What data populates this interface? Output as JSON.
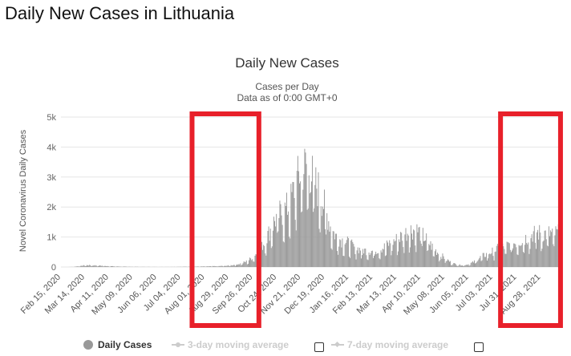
{
  "page_title": "Daily New Cases in Lithuania",
  "colors": {
    "bars": "#999999",
    "grid": "#e6e6e6",
    "highlight_box": "#e8202a",
    "text": "#333333",
    "legend_dim": "#cccccc"
  },
  "legend": {
    "main": "Daily Cases",
    "ma3": "3-day moving average",
    "ma7": "7-day moving average"
  },
  "chart_data": {
    "type": "bar",
    "title": "Daily New Cases",
    "subtitle": "Cases per Day",
    "subtitle2": "Data as of 0:00 GMT+0",
    "ylabel": "Novel Coronavirus Daily Cases",
    "xlabel": "",
    "ylim": [
      0,
      5000
    ],
    "y_ticks": [
      0,
      1000,
      2000,
      3000,
      4000,
      5000
    ],
    "y_tick_labels": [
      "0",
      "1k",
      "2k",
      "3k",
      "4k",
      "5k"
    ],
    "x_start": "2020-02-15",
    "x_end": "2021-09-21",
    "x_tick_labels": [
      "Feb 15, 2020",
      "Mar 14, 2020",
      "Apr 11, 2020",
      "May 09, 2020",
      "Jun 06, 2020",
      "Jul 04, 2020",
      "Aug 01, 2020",
      "Aug 29, 2020",
      "Sep 26, 2020",
      "Oct 24, 2020",
      "Nov 21, 2020",
      "Dec 19, 2020",
      "Jan 16, 2021",
      "Feb 13, 2021",
      "Mar 13, 2021",
      "Apr 10, 2021",
      "May 08, 2021",
      "Jun 05, 2021",
      "Jul 03, 2021",
      "Jul 31, 2021",
      "Aug 28, 2021"
    ],
    "grid": true,
    "legend_position": "bottom",
    "series": [
      {
        "name": "Daily Cases",
        "weekly_daily_values": [
          0,
          0,
          5,
          30,
          60,
          60,
          50,
          40,
          30,
          20,
          15,
          10,
          8,
          6,
          5,
          4,
          3,
          3,
          4,
          5,
          8,
          10,
          12,
          15,
          20,
          25,
          30,
          35,
          50,
          80,
          120,
          200,
          350,
          550,
          900,
          1350,
          1750,
          1900,
          2100,
          2800,
          3300,
          3500,
          3000,
          2600,
          2000,
          1300,
          1000,
          900,
          800,
          650,
          600,
          550,
          550,
          600,
          700,
          850,
          950,
          1100,
          1250,
          1300,
          1150,
          900,
          650,
          450,
          300,
          150,
          80,
          60,
          100,
          200,
          350,
          450,
          550,
          650,
          700,
          800,
          850,
          950,
          1050,
          1200,
          1150
        ]
      }
    ]
  },
  "highlight_boxes": [
    {
      "from": "2020-07-17",
      "to": "2020-10-03"
    },
    {
      "from": "2021-07-12",
      "to": "2021-09-20"
    }
  ]
}
